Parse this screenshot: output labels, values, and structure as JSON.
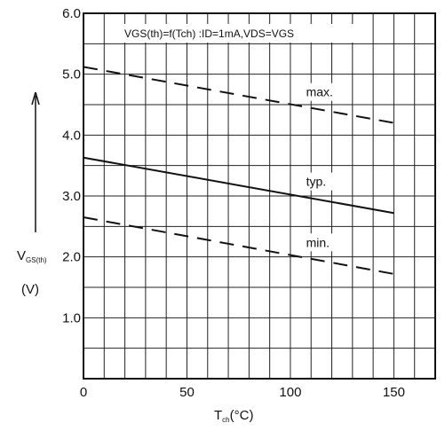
{
  "chart_data": {
    "type": "line",
    "title": "VGS(th)=f(Tch) :ID=1mA,VDS=VGS",
    "xlabel_main": "T",
    "xlabel_sub": "ch",
    "xlabel_unit": "(°C)",
    "ylabel_main": "V",
    "ylabel_sub": "GS(th)",
    "ylabel_unit": "(V)",
    "xlim": [
      0,
      170
    ],
    "ylim": [
      0,
      6.0
    ],
    "x_ticks": [
      0,
      50,
      100,
      150
    ],
    "x_tick_labels": [
      "0",
      "50",
      "100",
      "150"
    ],
    "y_ticks": [
      1.0,
      2.0,
      3.0,
      4.0,
      5.0,
      6.0
    ],
    "y_tick_labels": [
      "1.0",
      "2.0",
      "3.0",
      "4.0",
      "5.0",
      "6.0"
    ],
    "grid": true,
    "series": [
      {
        "name": "max.",
        "x": [
          0,
          150
        ],
        "y": [
          5.12,
          4.2
        ],
        "style": "dashed"
      },
      {
        "name": "typ.",
        "x": [
          0,
          150
        ],
        "y": [
          3.63,
          2.72
        ],
        "style": "solid"
      },
      {
        "name": "min.",
        "x": [
          0,
          150
        ],
        "y": [
          2.65,
          1.72
        ],
        "style": "dashed"
      }
    ],
    "annotations": [
      {
        "text": "max.",
        "x": 108,
        "y": 4.65
      },
      {
        "text": "typ.",
        "x": 108,
        "y": 3.18
      },
      {
        "text": "min.",
        "x": 108,
        "y": 2.18
      }
    ]
  }
}
